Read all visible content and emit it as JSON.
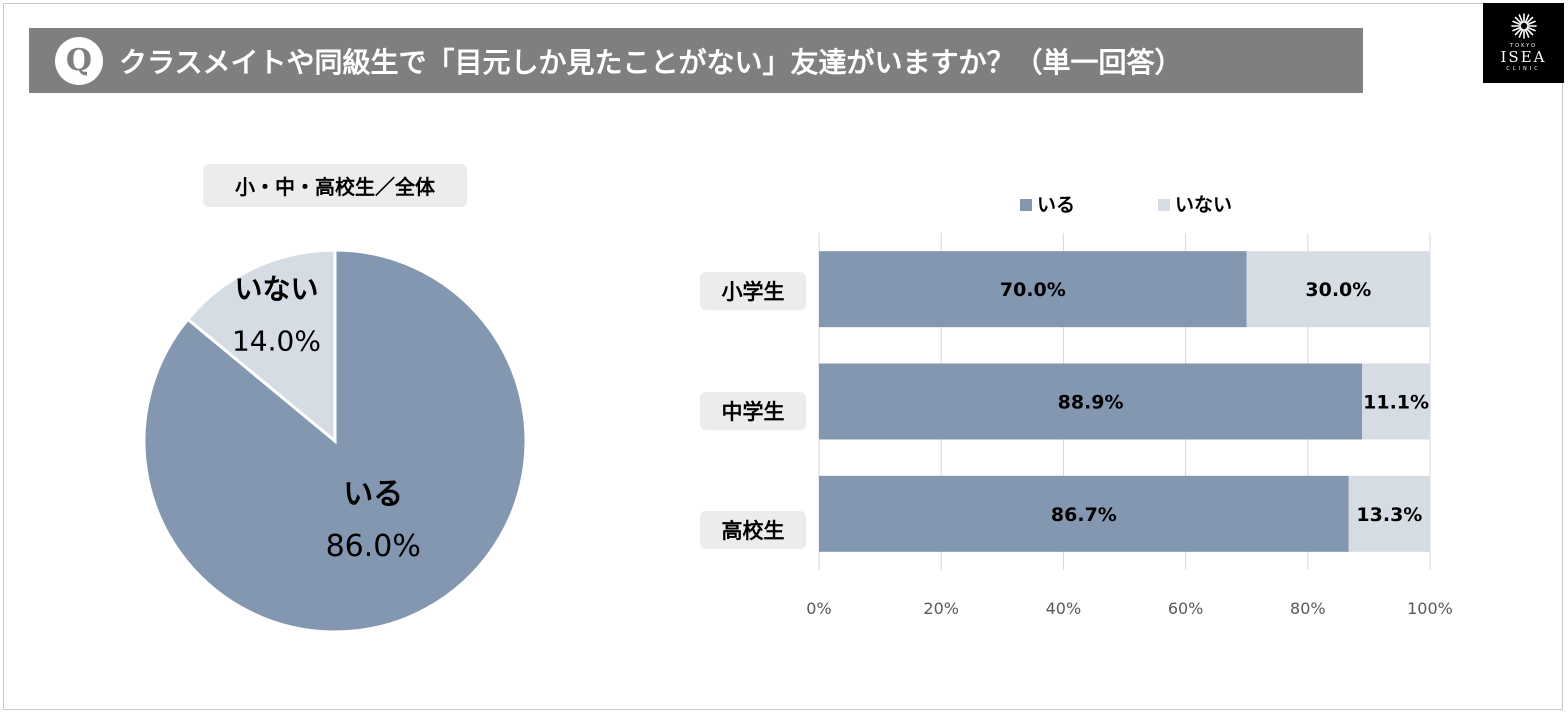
{
  "header": {
    "q_badge": "Q",
    "title": "クラスメイトや同級生で「目元しか見たことがない」友達がいますか？（単一回答）"
  },
  "logo": {
    "top": "TOKYO",
    "name": "ISEA",
    "bottom": "CLINIC"
  },
  "colors": {
    "iru": "#8497b0",
    "inai": "#d6dce4",
    "title_bg": "#7f7f7f"
  },
  "chart_data": [
    {
      "type": "pie",
      "title": "小・中・高校生／全体",
      "slices": [
        {
          "label": "いる",
          "value": 86.0,
          "display": "86.0%"
        },
        {
          "label": "いない",
          "value": 14.0,
          "display": "14.0%"
        }
      ]
    },
    {
      "type": "bar",
      "stacked": true,
      "orientation": "horizontal",
      "categories": [
        "小学生",
        "中学生",
        "高校生"
      ],
      "series": [
        {
          "name": "いる",
          "values": [
            70.0,
            88.9,
            86.7
          ],
          "labels": [
            "70.0%",
            "88.9%",
            "86.7%"
          ]
        },
        {
          "name": "いない",
          "values": [
            30.0,
            11.1,
            13.3
          ],
          "labels": [
            "30.0%",
            "11.1%",
            "13.3%"
          ]
        }
      ],
      "xlim": [
        0,
        100
      ],
      "xticks": [
        "0%",
        "20%",
        "40%",
        "60%",
        "80%",
        "100%"
      ],
      "legend": "top",
      "grid": true
    }
  ]
}
